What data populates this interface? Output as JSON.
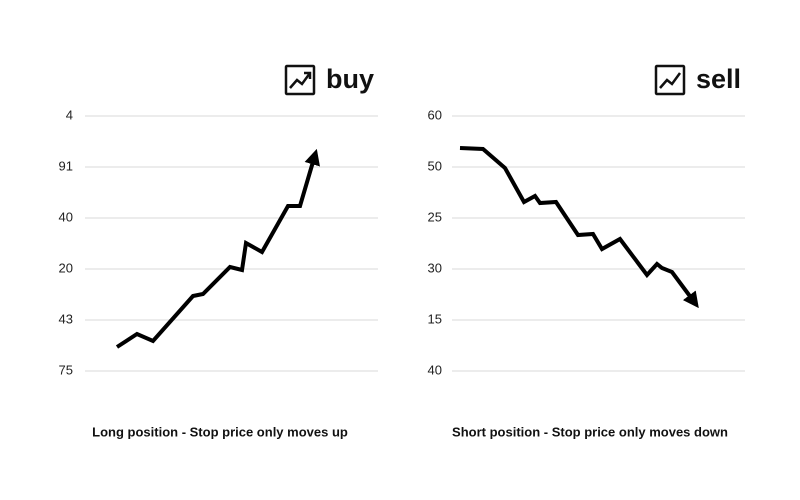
{
  "panels": [
    {
      "title": "buy",
      "axis_labels": [
        "4",
        "91",
        "40",
        "20",
        "43",
        "75"
      ],
      "caption": "Long position - Stop price only moves up"
    },
    {
      "title": "sell",
      "axis_labels": [
        "60",
        "50",
        "25",
        "30",
        "15",
        "40"
      ],
      "caption": "Short position - Stop price only moves down"
    }
  ]
}
